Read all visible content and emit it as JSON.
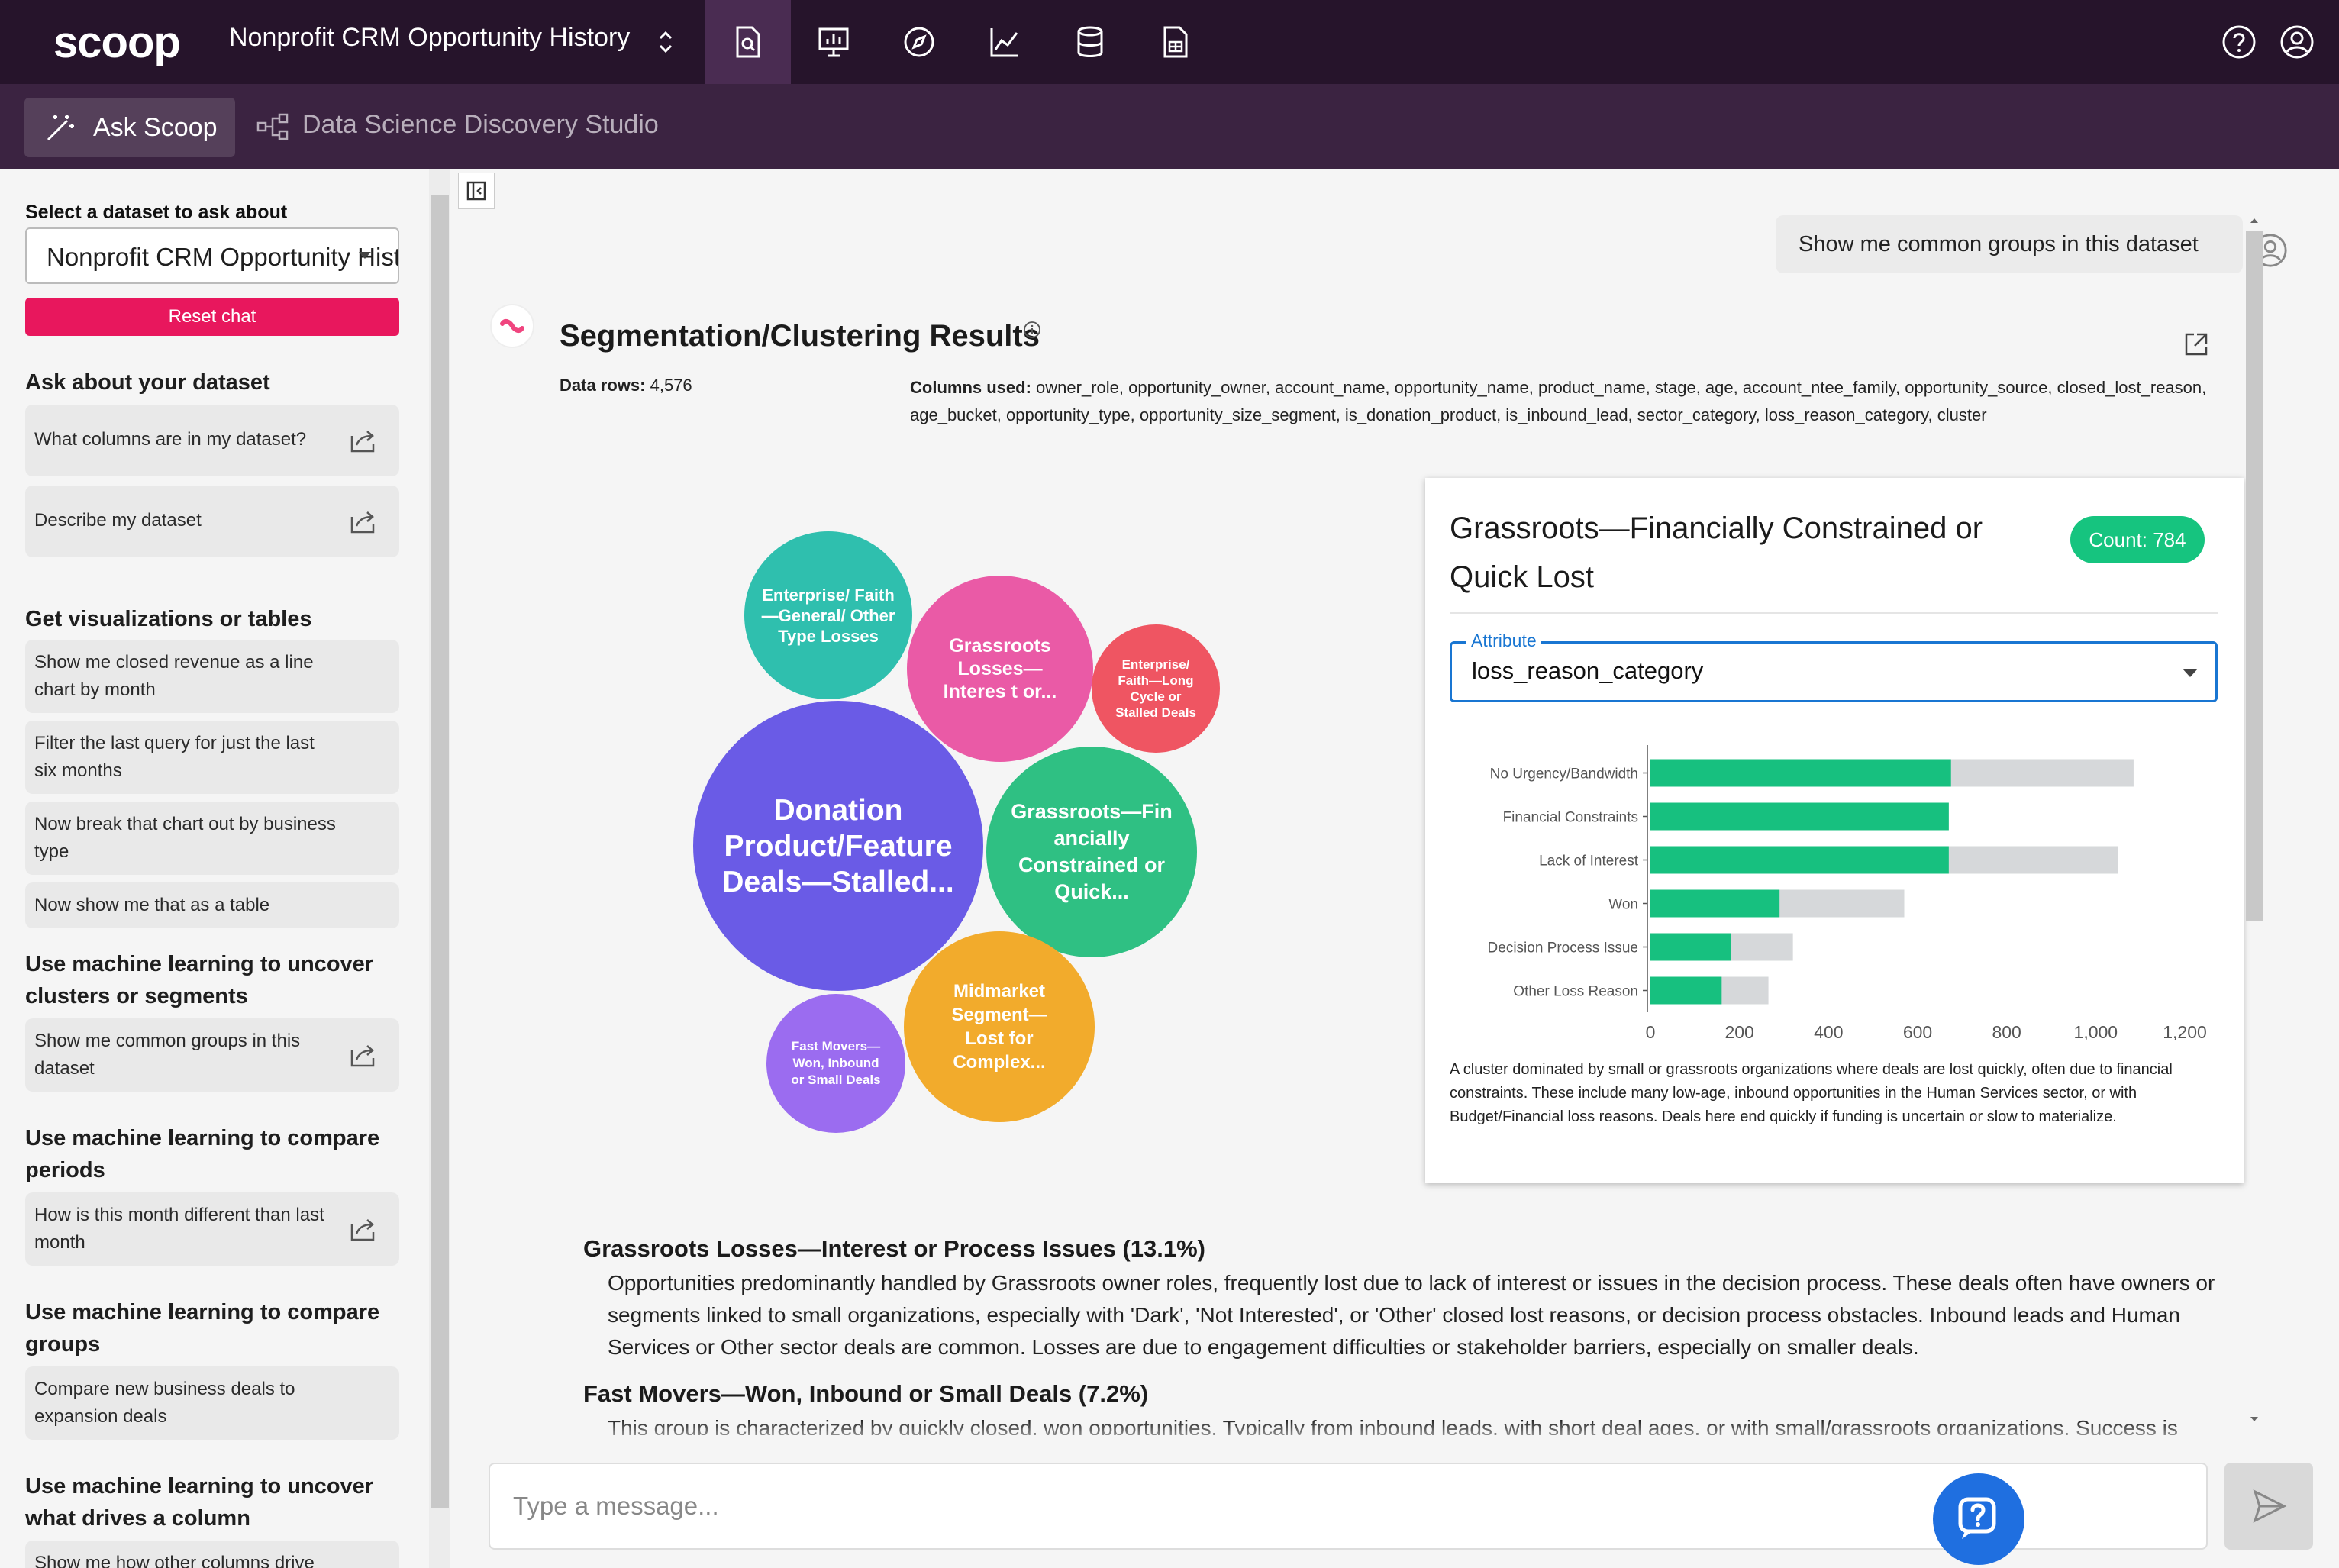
{
  "topbar": {
    "logo": "scoop",
    "app_title": "Nonprofit CRM Opportunity History",
    "nav_icons": [
      "dataset-search-icon",
      "presentation-icon",
      "compass-icon",
      "line-chart-icon",
      "database-icon",
      "report-icon"
    ],
    "right_icons": [
      "help-icon",
      "account-icon"
    ]
  },
  "subbar": {
    "ask_label": "Ask Scoop",
    "studio_label": "Data Science Discovery Studio"
  },
  "sidebar": {
    "dataset_label": "Select a dataset to ask about",
    "dataset_value": "Nonprofit CRM Opportunity History",
    "reset_label": "Reset chat",
    "sections": [
      {
        "title": "Ask about your dataset",
        "items": [
          "What columns are in my dataset?",
          "Describe my dataset"
        ]
      },
      {
        "title": "Get visualizations or tables",
        "items": [
          "Show me closed revenue as a line chart by month",
          "Filter the last query for just the last six months",
          "Now break that chart out by business type",
          "Now show me that as a table"
        ]
      },
      {
        "title": "Use machine learning to uncover clusters or segments",
        "items": [
          "Show me common groups in this dataset"
        ]
      },
      {
        "title": "Use machine learning to compare periods",
        "items": [
          "How is this month different than last month"
        ]
      },
      {
        "title": "Use machine learning to compare groups",
        "items": [
          "Compare new business deals to expansion deals"
        ]
      },
      {
        "title": "Use machine learning to uncover what drives a column",
        "items": [
          "Show me how other columns drive deal"
        ]
      }
    ]
  },
  "chat": {
    "user_message": "Show me common groups in this dataset",
    "result_title": "Segmentation/Clustering Results",
    "data_rows_label": "Data rows:",
    "data_rows_value": "4,576",
    "columns_label": "Columns used:",
    "columns_value": "owner_role, opportunity_owner, account_name, opportunity_name, product_name, stage, age, account_ntee_family, opportunity_source, closed_lost_reason, age_bucket, opportunity_type, opportunity_size_segment, is_donation_product, is_inbound_lead, sector_category, loss_reason_category, cluster",
    "clusters": [
      {
        "label": "Enterprise/ Faith—General/ Other Type Losses",
        "color": "#2fbfae"
      },
      {
        "label": "Grassroots Losses—Interes t or...",
        "color": "#ea5aa6"
      },
      {
        "label": "Enterprise/ Faith—Long Cycle or Stalled Deals",
        "color": "#ef5562"
      },
      {
        "label": "Donation Product/Feature Deals—Stalled...",
        "color": "#6a5be6"
      },
      {
        "label": "Grassroots—Fin ancially Constrained or Quick...",
        "color": "#2fc083"
      },
      {
        "label": "Fast Movers—Won, Inbound or Small Deals",
        "color": "#9b6cf0"
      },
      {
        "label": "Midmarket Segment—Lost for Complex...",
        "color": "#f2ab2c"
      }
    ],
    "detail": {
      "title": "Grassroots—Financially Constrained or Quick Lost",
      "count_label": "Count: 784",
      "attribute_label": "Attribute",
      "attribute_value": "loss_reason_category",
      "description": "A cluster dominated by small or grassroots organizations where deals are lost quickly, often due to financial constraints. These include many low-age, inbound opportunities in the Human Services sector, or with Budget/Financial loss reasons. Deals here end quickly if funding is uncertain or slow to materialize."
    },
    "sections": [
      {
        "heading": "Grassroots Losses—Interest or Process Issues (13.1%)",
        "body": "Opportunities predominantly handled by Grassroots owner roles, frequently lost due to lack of interest or issues in the decision process. These deals often have owners or segments linked to small organizations, especially with 'Dark', 'Not Interested', or 'Other' closed lost reasons, or decision process obstacles. Inbound leads and Human Services or Other sector deals are common. Losses are due to engagement difficulties or stakeholder barriers, especially on smaller deals."
      },
      {
        "heading": "Fast Movers—Won, Inbound or Small Deals (7.2%)",
        "body": "This group is characterized by quickly closed, won opportunities. Typically from inbound leads, with short deal ages, or with small/grassroots organizations. Success is"
      }
    ],
    "composer_placeholder": "Type a message..."
  },
  "chart_data": {
    "type": "bar",
    "categories": [
      "No Urgency/Bandwidth",
      "Financial Constraints",
      "Lack of Interest",
      "Won",
      "Decision Process Issue",
      "Other Loss Reason"
    ],
    "series": [
      {
        "values": [
          1085,
          670,
          1050,
          570,
          320,
          265
        ],
        "color": "#d6d8da"
      },
      {
        "values": [
          675,
          670,
          670,
          290,
          180,
          160
        ],
        "color": "#17c07f"
      }
    ],
    "xlim": [
      0,
      1200
    ],
    "xticks": [
      "0",
      "200",
      "400",
      "600",
      "800",
      "1,000",
      "1,200"
    ],
    "grid": false,
    "legend": "none"
  }
}
